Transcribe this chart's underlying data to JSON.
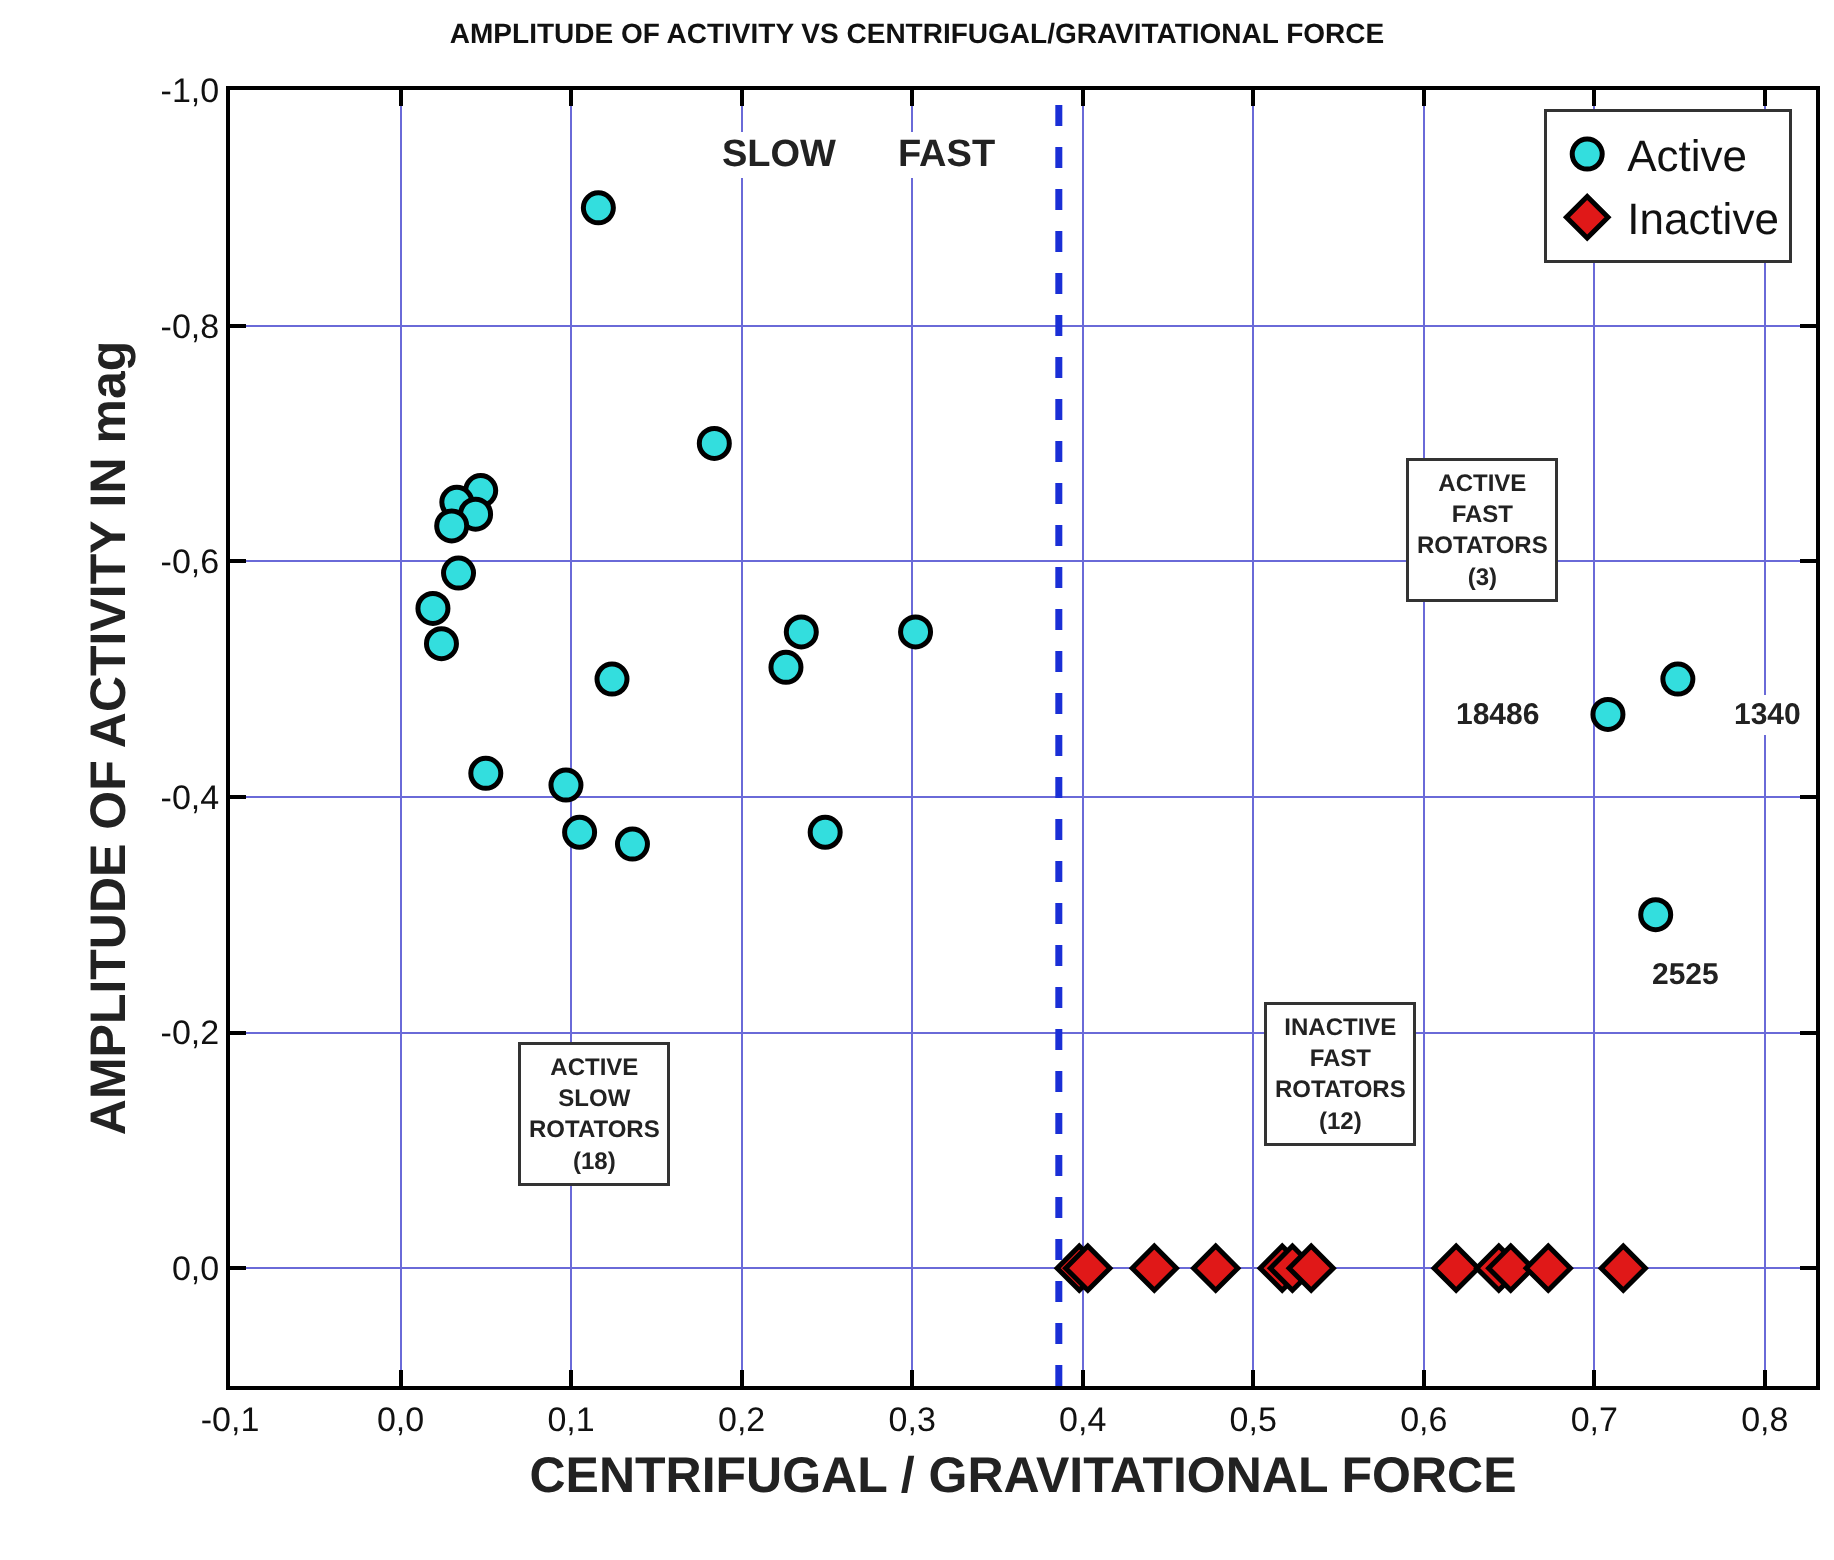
{
  "chart_data": {
    "type": "scatter",
    "title": "AMPLITUDE OF ACTIVITY VS CENTRIFUGAL/GRAVITATIONAL FORCE",
    "xlabel": "CENTRIFUGAL / GRAVITATIONAL FORCE",
    "ylabel": "AMPLITUDE OF ACTIVITY IN mag",
    "series": [
      {
        "name": "Active",
        "color": "#33dede",
        "marker": "circle",
        "x": [
          0.116,
          0.184,
          0.047,
          0.033,
          0.044,
          0.03,
          0.034,
          0.019,
          0.024,
          0.124,
          0.235,
          0.226,
          0.302,
          0.05,
          0.097,
          0.105,
          0.136,
          0.249,
          0.749,
          0.708,
          0.736
        ],
        "values": [
          -0.9,
          -0.7,
          -0.66,
          -0.65,
          -0.64,
          -0.63,
          -0.59,
          -0.56,
          -0.53,
          -0.5,
          -0.54,
          -0.51,
          -0.54,
          -0.42,
          -0.41,
          -0.37,
          -0.36,
          -0.37,
          -0.5,
          -0.47,
          -0.3
        ]
      },
      {
        "name": "Inactive",
        "color": "#e01818",
        "marker": "diamond",
        "x": [
          0.398,
          0.403,
          0.442,
          0.478,
          0.517,
          0.523,
          0.534,
          0.619,
          0.644,
          0.651,
          0.673,
          0.717
        ],
        "values": [
          0,
          0,
          0,
          0,
          0,
          0,
          0,
          0,
          0,
          0,
          0,
          0
        ]
      }
    ],
    "xlim": [
      -0.1,
      0.83
    ],
    "ylim": [
      0.1,
      -1.0
    ],
    "xticks": [
      {
        "value": -0.1,
        "label": "-0,1"
      },
      {
        "value": 0.0,
        "label": "0,0"
      },
      {
        "value": 0.1,
        "label": "0,1"
      },
      {
        "value": 0.2,
        "label": "0,2"
      },
      {
        "value": 0.3,
        "label": "0,3"
      },
      {
        "value": 0.4,
        "label": "0,4"
      },
      {
        "value": 0.5,
        "label": "0,5"
      },
      {
        "value": 0.6,
        "label": "0,6"
      },
      {
        "value": 0.7,
        "label": "0,7"
      },
      {
        "value": 0.8,
        "label": "0,8"
      }
    ],
    "yticks": [
      {
        "value": -1.0,
        "label": "-1,0"
      },
      {
        "value": -0.8,
        "label": "-0,8"
      },
      {
        "value": -0.6,
        "label": "-0,6"
      },
      {
        "value": -0.4,
        "label": "-0,4"
      },
      {
        "value": -0.2,
        "label": "-0,2"
      },
      {
        "value": 0.0,
        "label": "0,0"
      }
    ],
    "ref_lines": [
      {
        "axis": "x",
        "value": 0.386,
        "color": "#1a2fd6",
        "line_style": "dashed"
      }
    ],
    "annotations": [
      "SLOW",
      "FAST",
      "ACTIVE\nFAST\nROTATORS\n(3)",
      "INACTIVE\nFAST\nROTATORS\n(12)",
      "ACTIVE\nSLOW\nROTATORS\n(18)",
      {
        "text": "18486",
        "x": 0.708,
        "y": -0.47
      },
      {
        "text": "1340",
        "x": 0.749,
        "y": -0.5
      },
      {
        "text": "2525",
        "x": 0.736,
        "y": -0.3
      }
    ],
    "grid": true,
    "legend": "top right"
  }
}
